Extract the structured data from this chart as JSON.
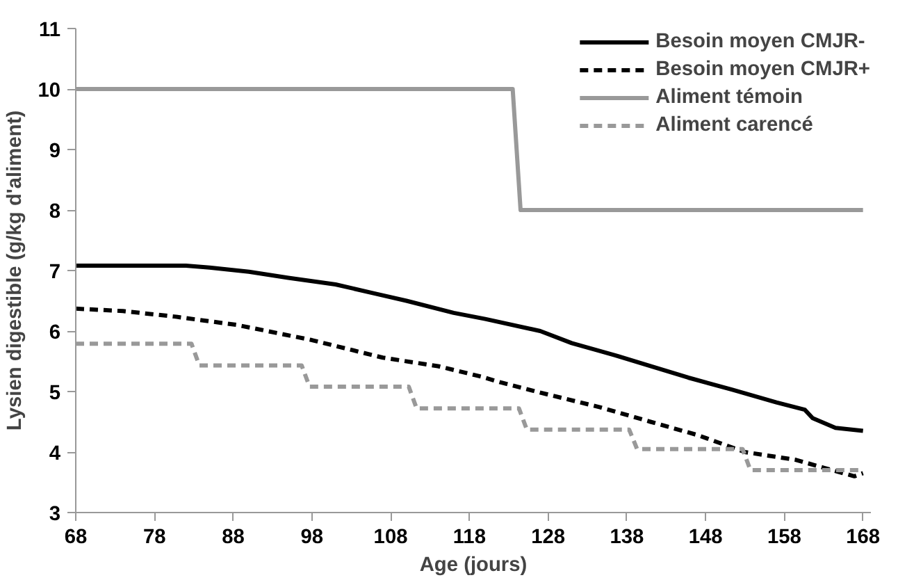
{
  "chart_data": {
    "type": "line",
    "xlabel": "Age (jours)",
    "ylabel": "Lysien digestible (g/kg d'aliment)",
    "xlim": [
      68,
      169
    ],
    "ylim": [
      3,
      11
    ],
    "xticks": [
      68,
      78,
      88,
      98,
      108,
      118,
      128,
      138,
      148,
      158,
      168
    ],
    "yticks": [
      3,
      4,
      5,
      6,
      7,
      8,
      9,
      10,
      11
    ],
    "grid": false,
    "legend": "top right",
    "marker": "none",
    "series": [
      {
        "name": "Besoin moyen CMJR-",
        "color": "#000000",
        "line_style": "solid",
        "x": [
          68,
          82,
          85,
          90,
          95,
          101,
          106,
          110,
          116,
          120,
          127,
          131,
          136.5,
          141,
          145.8,
          151.4,
          157,
          160.6,
          161.6,
          164.5,
          168
        ],
        "values": [
          7.08,
          7.08,
          7.05,
          6.98,
          6.88,
          6.77,
          6.62,
          6.5,
          6.3,
          6.2,
          6.0,
          5.8,
          5.6,
          5.42,
          5.23,
          5.03,
          4.82,
          4.7,
          4.56,
          4.4,
          4.35
        ]
      },
      {
        "name": "Besoin moyen CMJR+",
        "color": "#000000",
        "line_style": "dashed",
        "x": [
          68,
          74,
          80.5,
          88.5,
          98,
          107,
          114,
          119.7,
          122,
          128,
          134.6,
          141,
          147,
          153,
          159.5,
          163,
          166.9,
          168
        ],
        "values": [
          6.37,
          6.33,
          6.24,
          6.1,
          5.85,
          5.56,
          5.42,
          5.24,
          5.15,
          4.95,
          4.74,
          4.5,
          4.28,
          4.0,
          3.87,
          3.74,
          3.6,
          3.65
        ]
      },
      {
        "name": "Aliment témoin",
        "color": "#999999",
        "line_style": "solid",
        "x": [
          68,
          123.5,
          124.5,
          168
        ],
        "values": [
          10,
          10,
          8,
          8
        ]
      },
      {
        "name": "Aliment carencé",
        "color": "#999999",
        "line_style": "dashed",
        "x": [
          68,
          82.7,
          83.7,
          96.7,
          97.7,
          110.3,
          111.3,
          124.3,
          125.3,
          138.3,
          139.3,
          152.7,
          153.7,
          168
        ],
        "values": [
          5.79,
          5.79,
          5.43,
          5.43,
          5.08,
          5.08,
          4.72,
          4.72,
          4.37,
          4.37,
          4.05,
          4.05,
          3.7,
          3.7
        ]
      }
    ]
  }
}
